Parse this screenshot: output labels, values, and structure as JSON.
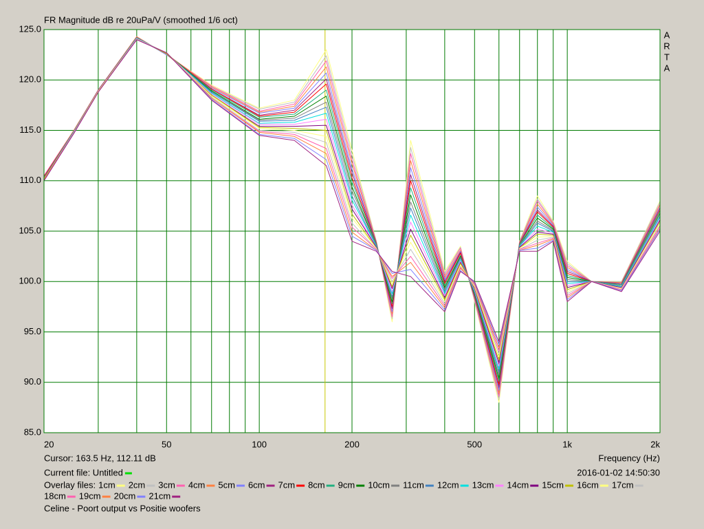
{
  "chart_data": {
    "type": "line",
    "title": "FR Magnitude dB re 20uPa/V (smoothed 1/6 oct)",
    "brand": [
      "A",
      "R",
      "T",
      "A"
    ],
    "x_label": "Frequency (Hz)",
    "cursor": {
      "label": "Cursor: 163.5 Hz, 112.11 dB",
      "x": 163.5,
      "color": "#c8c800"
    },
    "current_file": {
      "label": "Current file: Untitled",
      "color": "#00e000"
    },
    "timestamp": "2016-01-02  14:50:30",
    "legend_title": "Overlay files:",
    "footer": "Celine - Poort output vs Positie woofers",
    "xscale": "log",
    "grid": true,
    "grid_color": "#007a00",
    "xlim": [
      20,
      2000
    ],
    "ylim": [
      85,
      125
    ],
    "xticks": [
      20,
      50,
      100,
      200,
      500,
      {
        "value": 1000,
        "label": "1k"
      },
      {
        "value": 2000,
        "label": "2k"
      }
    ],
    "xminorticks": [
      30,
      40,
      60,
      70,
      80,
      90,
      300,
      400,
      600,
      700,
      800,
      900
    ],
    "yticks": [
      {
        "value": 85,
        "label": "85.0"
      },
      {
        "value": 90,
        "label": "90.0"
      },
      {
        "value": 95,
        "label": "95.0"
      },
      {
        "value": 100,
        "label": "100.0"
      },
      {
        "value": 105,
        "label": "105.0"
      },
      {
        "value": 110,
        "label": "110.0"
      },
      {
        "value": 115,
        "label": "115.0"
      },
      {
        "value": 120,
        "label": "120.0"
      },
      {
        "value": 125,
        "label": "125.0"
      }
    ],
    "x": [
      20,
      25,
      30,
      40,
      50,
      70,
      100,
      130,
      165,
      200,
      240,
      270,
      310,
      400,
      450,
      500,
      600,
      700,
      800,
      900,
      1000,
      1200,
      1500,
      2000
    ],
    "series": [
      {
        "name": "1cm",
        "color": "#ffff80",
        "values": [
          110.5,
          115,
          119,
          124.3,
          122.5,
          119.5,
          117.2,
          118,
          123,
          113,
          104,
          96,
          114,
          101,
          103.5,
          98,
          88,
          104,
          108.5,
          106,
          102,
          100,
          100,
          108
        ]
      },
      {
        "name": "2cm",
        "color": "#c0c0c0",
        "values": [
          110.5,
          115,
          119,
          124.3,
          122.5,
          119.4,
          117.1,
          117.8,
          122.4,
          112.6,
          104,
          96.3,
          113.3,
          100.8,
          103.4,
          98.1,
          88.3,
          104,
          108.2,
          105.9,
          101.8,
          100,
          100,
          107.9
        ]
      },
      {
        "name": "3cm",
        "color": "#ff60b0",
        "values": [
          110.5,
          115,
          119,
          124.3,
          122.5,
          119.4,
          116.9,
          117.6,
          121.9,
          112.1,
          103.9,
          96.5,
          112.7,
          100.6,
          103.3,
          98.2,
          88.6,
          103.9,
          108,
          105.8,
          101.6,
          100,
          99.9,
          107.7
        ]
      },
      {
        "name": "4cm",
        "color": "#ff8040",
        "values": [
          110.4,
          115,
          119,
          124.3,
          122.5,
          119.3,
          116.8,
          117.4,
          121.3,
          111.7,
          103.9,
          96.8,
          112,
          100.4,
          103.1,
          98.3,
          88.9,
          103.9,
          107.7,
          105.7,
          101.4,
          100,
          99.9,
          107.6
        ]
      },
      {
        "name": "5cm",
        "color": "#8080ff",
        "values": [
          110.4,
          114.9,
          119,
          124.2,
          122.5,
          119.2,
          116.7,
          117.2,
          120.7,
          111.2,
          103.8,
          97,
          111.3,
          100.2,
          103,
          98.4,
          89.2,
          103.8,
          107.4,
          105.6,
          101.2,
          100,
          99.8,
          107.4
        ]
      },
      {
        "name": "6cm",
        "color": "#a02080",
        "values": [
          110.4,
          114.9,
          119,
          124.2,
          122.6,
          119.1,
          116.5,
          117,
          120.1,
          110.8,
          103.8,
          97.3,
          110.6,
          100,
          102.9,
          98.5,
          89.5,
          103.8,
          107.1,
          105.5,
          101,
          100,
          99.8,
          107.3
        ]
      },
      {
        "name": "7cm",
        "color": "#ff0000",
        "values": [
          110.4,
          114.9,
          118.9,
          124.2,
          122.6,
          119.1,
          116.4,
          116.8,
          119.6,
          110.3,
          103.7,
          97.5,
          110,
          99.8,
          102.8,
          98.6,
          89.8,
          103.7,
          106.9,
          105.4,
          100.8,
          100,
          99.7,
          107.1
        ]
      },
      {
        "name": "8cm",
        "color": "#20b080",
        "values": [
          110.3,
          114.9,
          118.9,
          124.2,
          122.6,
          119,
          116.3,
          116.6,
          119,
          109.9,
          103.7,
          97.8,
          109.3,
          99.6,
          102.6,
          98.7,
          90.1,
          103.7,
          106.6,
          105.3,
          100.6,
          100,
          99.7,
          107
        ]
      },
      {
        "name": "9cm",
        "color": "#008000",
        "values": [
          110.3,
          114.9,
          118.9,
          124.2,
          122.6,
          118.9,
          116.1,
          116.4,
          118.4,
          109.4,
          103.6,
          98,
          108.6,
          99.4,
          102.5,
          98.8,
          90.4,
          103.6,
          106.3,
          105.2,
          100.4,
          100,
          99.6,
          106.8
        ]
      },
      {
        "name": "10cm",
        "color": "#808080",
        "values": [
          110.3,
          114.9,
          118.9,
          124.2,
          122.6,
          118.8,
          116,
          116.2,
          117.8,
          109,
          103.6,
          98.3,
          107.9,
          99.2,
          102.4,
          98.9,
          90.7,
          103.6,
          106,
          105.1,
          100.2,
          100,
          99.6,
          106.7
        ]
      },
      {
        "name": "11cm",
        "color": "#4080c0",
        "values": [
          110.3,
          114.9,
          118.9,
          124.2,
          122.6,
          118.8,
          115.9,
          116,
          117.3,
          108.5,
          103.5,
          98.5,
          107.3,
          99,
          102.3,
          99,
          91,
          103.5,
          105.8,
          105,
          100,
          100,
          99.5,
          106.5
        ]
      },
      {
        "name": "12cm",
        "color": "#00e0e0",
        "values": [
          110.2,
          114.8,
          118.9,
          124.1,
          122.6,
          118.7,
          115.7,
          115.8,
          116.7,
          108.1,
          103.5,
          98.8,
          106.6,
          98.8,
          102.1,
          99.1,
          91.3,
          103.5,
          105.5,
          104.9,
          99.8,
          100,
          99.5,
          106.4
        ]
      },
      {
        "name": "13cm",
        "color": "#ff80ff",
        "values": [
          110.2,
          114.8,
          118.9,
          124.1,
          122.6,
          118.6,
          115.6,
          115.6,
          116.1,
          107.6,
          103.4,
          99,
          105.9,
          98.6,
          102,
          99.2,
          91.6,
          103.4,
          105.2,
          104.8,
          99.6,
          100,
          99.4,
          106.2
        ]
      },
      {
        "name": "14cm",
        "color": "#800080",
        "values": [
          110.2,
          114.8,
          118.9,
          124.1,
          122.6,
          118.5,
          115.4,
          115.4,
          115.5,
          107.2,
          103.4,
          99.3,
          105.2,
          98.4,
          101.9,
          99.3,
          91.9,
          103.4,
          104.9,
          104.7,
          99.4,
          100,
          99.4,
          106.1
        ]
      },
      {
        "name": "15cm",
        "color": "#c0c000",
        "values": [
          110.2,
          114.8,
          118.9,
          124.1,
          122.6,
          118.5,
          115.3,
          115.2,
          115,
          106.7,
          103.3,
          99.5,
          104.6,
          98.2,
          101.8,
          99.4,
          92.2,
          103.3,
          104.7,
          104.6,
          99.2,
          100,
          99.3,
          105.9
        ]
      },
      {
        "name": "16cm",
        "color": "#ffff80",
        "values": [
          110.1,
          114.8,
          118.9,
          124.1,
          122.7,
          118.4,
          115.2,
          115,
          114.4,
          106.3,
          103.3,
          99.8,
          103.9,
          98,
          101.6,
          99.5,
          92.5,
          103.3,
          104.4,
          104.5,
          99,
          100,
          99.3,
          105.8
        ]
      },
      {
        "name": "17cm",
        "color": "#c0c0c0",
        "values": [
          110.1,
          114.8,
          118.8,
          124.1,
          122.7,
          118.3,
          115,
          114.8,
          113.8,
          105.8,
          103.2,
          100,
          103.2,
          97.8,
          101.5,
          99.6,
          92.8,
          103.2,
          104.1,
          104.4,
          98.8,
          100,
          99.2,
          105.6
        ]
      },
      {
        "name": "18cm",
        "color": "#ff60b0",
        "values": [
          110.1,
          114.7,
          118.8,
          124,
          122.7,
          118.2,
          114.9,
          114.6,
          113.2,
          105.4,
          103.2,
          100.3,
          102.5,
          97.6,
          101.4,
          99.7,
          93.1,
          103.2,
          103.8,
          104.3,
          98.6,
          100,
          99.2,
          105.5
        ]
      },
      {
        "name": "19cm",
        "color": "#ff8040",
        "values": [
          110.1,
          114.7,
          118.8,
          124,
          122.7,
          118.2,
          114.8,
          114.4,
          112.7,
          104.9,
          103.1,
          100.5,
          101.9,
          97.4,
          101.3,
          99.8,
          93.4,
          103.1,
          103.6,
          104.2,
          98.4,
          100,
          99.1,
          105.3
        ]
      },
      {
        "name": "20cm",
        "color": "#8080ff",
        "values": [
          110,
          114.7,
          118.8,
          124,
          122.7,
          118.1,
          114.6,
          114.2,
          112.1,
          104.5,
          103.1,
          100.8,
          101.2,
          97.2,
          101.1,
          99.9,
          93.7,
          103.1,
          103.3,
          104.1,
          98.2,
          100,
          99.1,
          105.2
        ]
      },
      {
        "name": "21cm",
        "color": "#a02080",
        "values": [
          110,
          114.7,
          118.8,
          124,
          122.7,
          118,
          114.5,
          114,
          111.5,
          104,
          103,
          101,
          100.5,
          97,
          101,
          100,
          94,
          103,
          103,
          104,
          98,
          100,
          99,
          105
        ]
      }
    ]
  }
}
